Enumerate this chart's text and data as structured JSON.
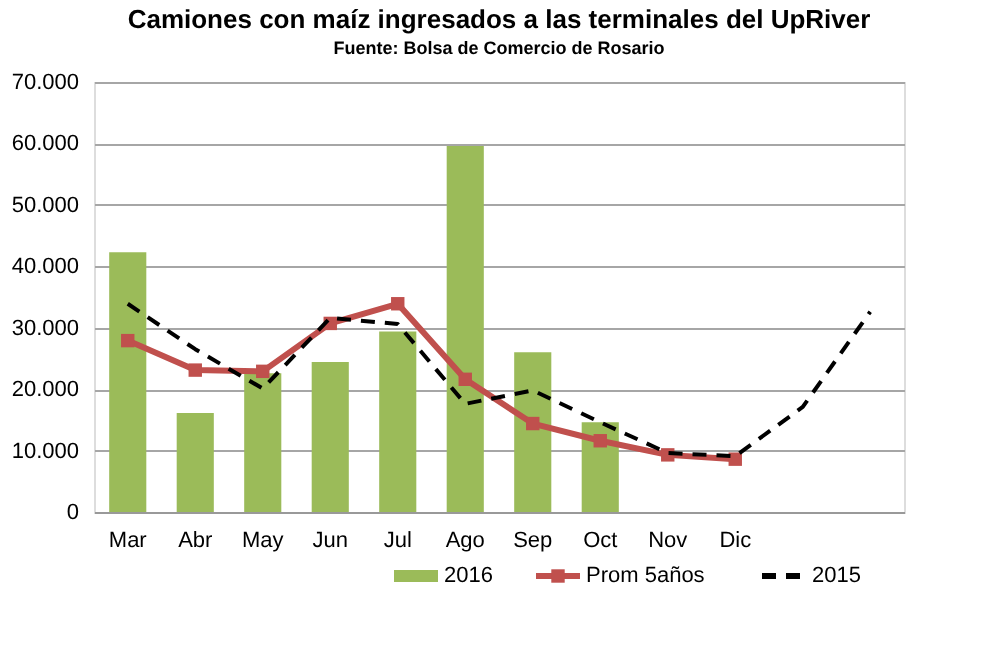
{
  "chart_data": {
    "type": "bar",
    "title": "Camiones con maíz ingresados a las terminales del UpRiver",
    "subtitle": "Fuente: Bolsa de Comercio de Rosario",
    "categories": [
      "Mar",
      "Abr",
      "May",
      "Jun",
      "Jul",
      "Ago",
      "Sep",
      "Oct",
      "Nov",
      "Dic",
      null,
      null
    ],
    "series": [
      {
        "name": "2016",
        "color": "#9bbb59",
        "values": [
          42300,
          16100,
          22600,
          24400,
          29400,
          59600,
          26000,
          14600,
          null,
          null,
          null,
          null
        ]
      },
      {
        "name": "Prom 5años",
        "type": "line",
        "color": "#c0504d",
        "marker": "square",
        "line_style": "solid",
        "values": [
          27900,
          23100,
          22900,
          30700,
          33900,
          21600,
          14400,
          11600,
          9300,
          8600,
          null,
          null
        ]
      },
      {
        "name": "2015",
        "type": "line",
        "color": "#000000",
        "marker": "none",
        "line_style": "dashed",
        "values": [
          33900,
          26500,
          20100,
          31600,
          30600,
          17600,
          19800,
          14600,
          9600,
          9100,
          17100,
          32600
        ]
      }
    ],
    "ylim": [
      0,
      70000
    ],
    "yticks": [
      {
        "value": 0,
        "label": "0"
      },
      {
        "value": 10000,
        "label": "10.000"
      },
      {
        "value": 20000,
        "label": "20.000"
      },
      {
        "value": 30000,
        "label": "30.000"
      },
      {
        "value": 40000,
        "label": "40.000"
      },
      {
        "value": 50000,
        "label": "50.000"
      },
      {
        "value": 60000,
        "label": "60.000"
      },
      {
        "value": 70000,
        "label": "70.000"
      }
    ],
    "grid": "y",
    "legend": "bottom"
  }
}
